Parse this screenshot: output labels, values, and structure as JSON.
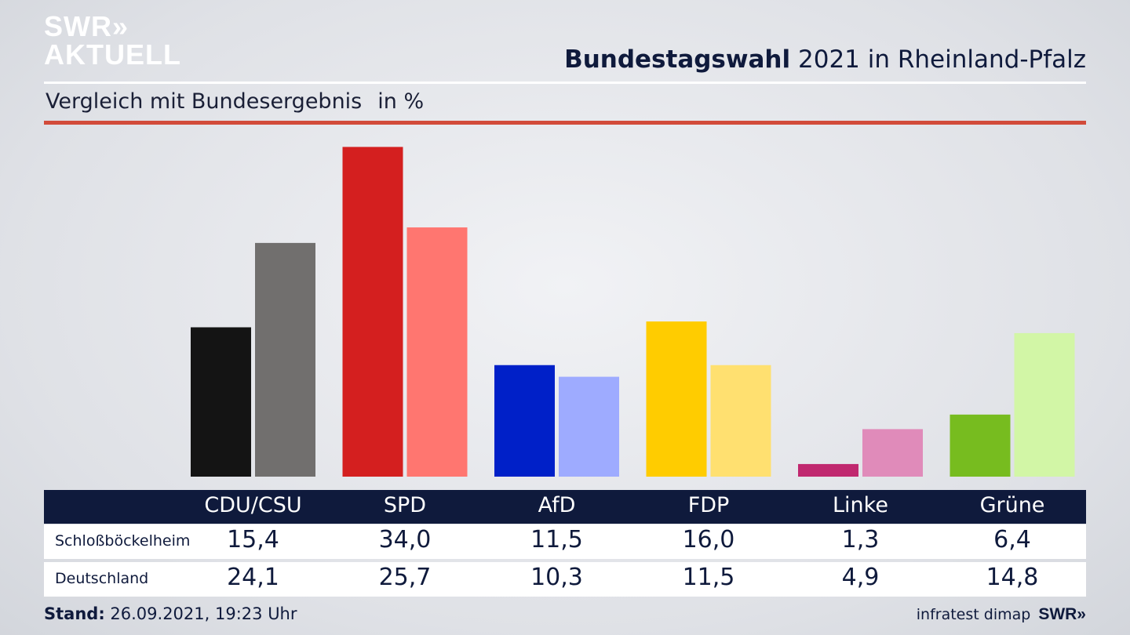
{
  "logo": {
    "line1": "SWR»",
    "line2": "AKTUELL"
  },
  "header": {
    "title_bold": "Bundestagswahl",
    "title_rest": "2021 in Rheinland-Pfalz"
  },
  "subheader": {
    "text": "Vergleich mit Bundesergebnis",
    "unit": "in %"
  },
  "footer": {
    "stand_label": "Stand:",
    "stand_value": "26.09.2021, 19:23 Uhr",
    "source": "infratest dimap",
    "brand": "SWR»"
  },
  "chart_data": {
    "type": "bar",
    "categories": [
      "CDU/CSU",
      "SPD",
      "AfD",
      "FDP",
      "Linke",
      "Grüne"
    ],
    "series": [
      {
        "name": "Schloßböckelheim",
        "values": [
          15.4,
          34.0,
          11.5,
          16.0,
          1.3,
          6.4
        ],
        "labels": [
          "15,4",
          "34,0",
          "11,5",
          "16,0",
          "1,3",
          "6,4"
        ]
      },
      {
        "name": "Deutschland",
        "values": [
          24.1,
          25.7,
          10.3,
          11.5,
          4.9,
          14.8
        ],
        "labels": [
          "24,1",
          "25,7",
          "10,3",
          "11,5",
          "4,9",
          "14,8"
        ]
      }
    ],
    "colors": {
      "primary": [
        "#141414",
        "#d41f1f",
        "#0020c8",
        "#ffcc00",
        "#c0286f",
        "#77bc1f"
      ],
      "secondary": [
        "#716f6e",
        "#ff7670",
        "#9eabff",
        "#ffe070",
        "#e08bba",
        "#d2f6a6"
      ]
    },
    "ylim": [
      0,
      34
    ],
    "grid": false,
    "legend": "table-below"
  }
}
